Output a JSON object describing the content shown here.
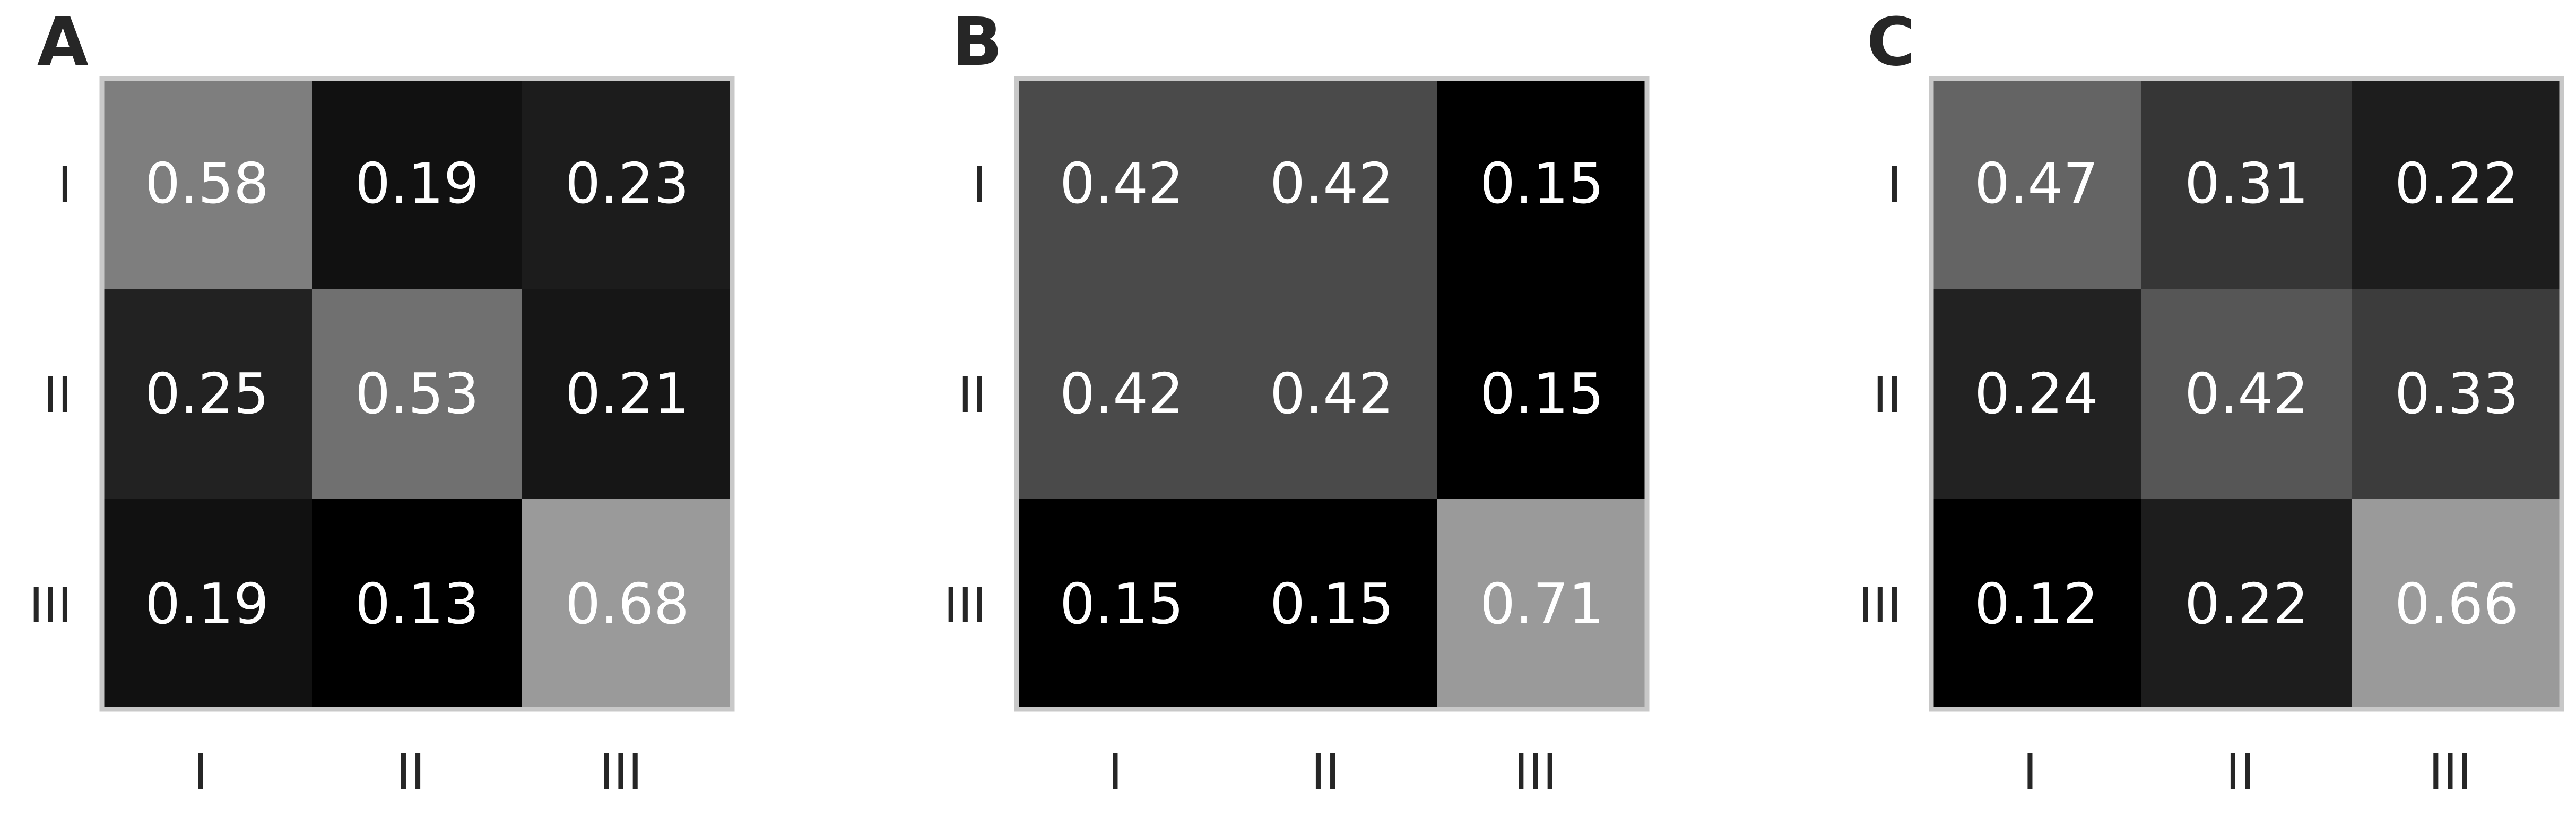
{
  "chart_data": [
    {
      "type": "heatmap",
      "panel_label": "A",
      "x_categories": [
        "I",
        "II",
        "III"
      ],
      "y_categories": [
        "I",
        "II",
        "III"
      ],
      "values": [
        [
          0.58,
          0.19,
          0.23
        ],
        [
          0.25,
          0.53,
          0.21
        ],
        [
          0.19,
          0.13,
          0.68
        ]
      ],
      "cell_labels": [
        [
          "0.58",
          "0.19",
          "0.23"
        ],
        [
          "0.25",
          "0.53",
          "0.21"
        ],
        [
          "0.19",
          "0.13",
          "0.68"
        ]
      ],
      "colormap": "grayscale",
      "color_range": [
        "#000000",
        "#9a9a9a"
      ],
      "grid": false,
      "legend": "none"
    },
    {
      "type": "heatmap",
      "panel_label": "B",
      "x_categories": [
        "I",
        "II",
        "III"
      ],
      "y_categories": [
        "I",
        "II",
        "III"
      ],
      "values": [
        [
          0.42,
          0.42,
          0.15
        ],
        [
          0.42,
          0.42,
          0.15
        ],
        [
          0.15,
          0.15,
          0.71
        ]
      ],
      "cell_labels": [
        [
          "0.42",
          "0.42",
          "0.15"
        ],
        [
          "0.42",
          "0.42",
          "0.15"
        ],
        [
          "0.15",
          "0.15",
          "0.71"
        ]
      ],
      "colormap": "grayscale",
      "color_range": [
        "#000000",
        "#9a9a9a"
      ],
      "grid": false,
      "legend": "none"
    },
    {
      "type": "heatmap",
      "panel_label": "C",
      "x_categories": [
        "I",
        "II",
        "III"
      ],
      "y_categories": [
        "I",
        "II",
        "III"
      ],
      "values": [
        [
          0.47,
          0.31,
          0.22
        ],
        [
          0.24,
          0.42,
          0.33
        ],
        [
          0.12,
          0.22,
          0.66
        ]
      ],
      "cell_labels": [
        [
          "0.47",
          "0.31",
          "0.22"
        ],
        [
          "0.24",
          "0.42",
          "0.33"
        ],
        [
          "0.12",
          "0.22",
          "0.66"
        ]
      ],
      "colormap": "grayscale",
      "color_range": [
        "#000000",
        "#9a9a9a"
      ],
      "grid": false,
      "legend": "none"
    }
  ]
}
